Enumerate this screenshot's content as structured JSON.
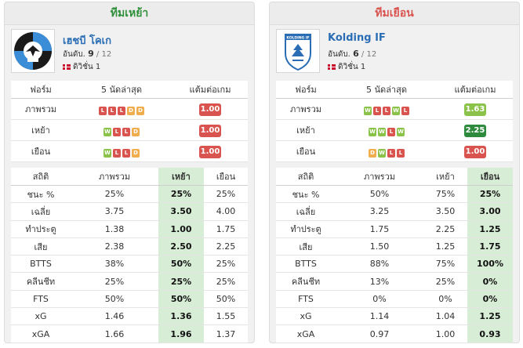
{
  "home": {
    "header": "ทีมเหย้า",
    "team_name": "เฮชบี โคเก",
    "rank_label": "อันดับ.",
    "rank": "9",
    "rank_total": "/ 12",
    "league": "ดิวิชั่น 1",
    "form_headers": [
      "ฟอร์ม",
      "5 นัดล่าสุด",
      "แต้มต่อเกม"
    ],
    "form_rows": [
      {
        "label": "ภาพรวม",
        "results": [
          "L",
          "L",
          "L",
          "D",
          "D"
        ],
        "ppg": "1.00",
        "ppg_color": "red"
      },
      {
        "label": "เหย้า",
        "results": [
          "W",
          "L",
          "L",
          "D"
        ],
        "ppg": "1.00",
        "ppg_color": "red"
      },
      {
        "label": "เยือน",
        "results": [
          "W",
          "L",
          "L",
          "D"
        ],
        "ppg": "1.00",
        "ppg_color": "red"
      }
    ],
    "stats_headers": [
      "สถิติ",
      "ภาพรวม",
      "เหย้า",
      "เยือน"
    ],
    "stats_rows": [
      {
        "label": "ชนะ %",
        "overall": "25%",
        "home": "25%",
        "away": "25%"
      },
      {
        "label": "เฉลี่ย",
        "overall": "3.75",
        "home": "3.50",
        "away": "4.00"
      },
      {
        "label": "ทำประตู",
        "overall": "1.38",
        "home": "1.00",
        "away": "1.75"
      },
      {
        "label": "เสีย",
        "overall": "2.38",
        "home": "2.50",
        "away": "2.25"
      },
      {
        "label": "BTTS",
        "overall": "38%",
        "home": "50%",
        "away": "25%"
      },
      {
        "label": "คลีนชีท",
        "overall": "25%",
        "home": "25%",
        "away": "25%"
      },
      {
        "label": "FTS",
        "overall": "50%",
        "home": "50%",
        "away": "50%"
      },
      {
        "label": "xG",
        "overall": "1.46",
        "home": "1.36",
        "away": "1.55"
      },
      {
        "label": "xGA",
        "overall": "1.66",
        "home": "1.96",
        "away": "1.37"
      }
    ]
  },
  "away": {
    "header": "ทีมเยือน",
    "team_name": "Kolding IF",
    "rank_label": "อันดับ.",
    "rank": "6",
    "rank_total": "/ 12",
    "league": "ดิวิชั่น 1",
    "logo_text": "KOLDING IF",
    "form_headers": [
      "ฟอร์ม",
      "5 นัดล่าสุด",
      "แต้มต่อเกม"
    ],
    "form_rows": [
      {
        "label": "ภาพรวม",
        "results": [
          "W",
          "L",
          "L",
          "W",
          "L"
        ],
        "ppg": "1.63",
        "ppg_color": "lgreen"
      },
      {
        "label": "เหย้า",
        "results": [
          "W",
          "W",
          "L",
          "W"
        ],
        "ppg": "2.25",
        "ppg_color": "dgreen"
      },
      {
        "label": "เยือน",
        "results": [
          "D",
          "W",
          "L",
          "L"
        ],
        "ppg": "1.00",
        "ppg_color": "red"
      }
    ],
    "stats_headers": [
      "สถิติ",
      "ภาพรวม",
      "เหย้า",
      "เยือน"
    ],
    "stats_rows": [
      {
        "label": "ชนะ %",
        "overall": "50%",
        "home": "75%",
        "away": "25%"
      },
      {
        "label": "เฉลี่ย",
        "overall": "3.25",
        "home": "3.50",
        "away": "3.00"
      },
      {
        "label": "ทำประตู",
        "overall": "1.75",
        "home": "2.25",
        "away": "1.25"
      },
      {
        "label": "เสีย",
        "overall": "1.50",
        "home": "1.25",
        "away": "1.75"
      },
      {
        "label": "BTTS",
        "overall": "88%",
        "home": "75%",
        "away": "100%"
      },
      {
        "label": "คลีนชีท",
        "overall": "13%",
        "home": "25%",
        "away": "0%"
      },
      {
        "label": "FTS",
        "overall": "0%",
        "home": "0%",
        "away": "0%"
      },
      {
        "label": "xG",
        "overall": "1.14",
        "home": "1.04",
        "away": "1.25"
      },
      {
        "label": "xGA",
        "overall": "0.97",
        "home": "1.00",
        "away": "0.93"
      }
    ]
  },
  "colors": {
    "home_header": "#2f8f3a",
    "away_header": "#d9534f",
    "win": "#8bc34a",
    "loss": "#d9534f",
    "draw": "#f0ad4e",
    "highlight": "#d8edd6"
  }
}
